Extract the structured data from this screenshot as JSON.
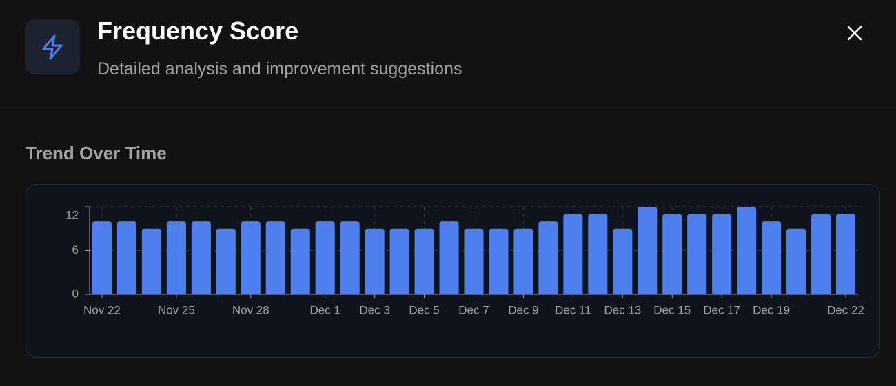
{
  "header": {
    "title": "Frequency Score",
    "subtitle": "Detailed analysis and improvement suggestions"
  },
  "section": {
    "title": "Trend Over Time"
  },
  "chart_data": {
    "type": "bar",
    "color": "#4d7fef",
    "categories": [
      "Nov 22",
      null,
      null,
      "Nov 25",
      null,
      null,
      "Nov 28",
      null,
      null,
      "Dec 1",
      null,
      "Dec 3",
      null,
      "Dec 5",
      null,
      "Dec 7",
      null,
      "Dec 9",
      null,
      "Dec 11",
      null,
      "Dec 13",
      null,
      "Dec 15",
      null,
      "Dec 17",
      null,
      "Dec 19",
      null,
      null,
      "Dec 22"
    ],
    "values": [
      10,
      10,
      9,
      10,
      10,
      9,
      10,
      10,
      9,
      10,
      10,
      9,
      9,
      9,
      10,
      9,
      9,
      9,
      10,
      11,
      11,
      9,
      12,
      11,
      11,
      11,
      12,
      10,
      9,
      11,
      11
    ],
    "ylim": [
      0,
      12
    ],
    "yticks": [
      0,
      6,
      12
    ],
    "grid": true
  }
}
